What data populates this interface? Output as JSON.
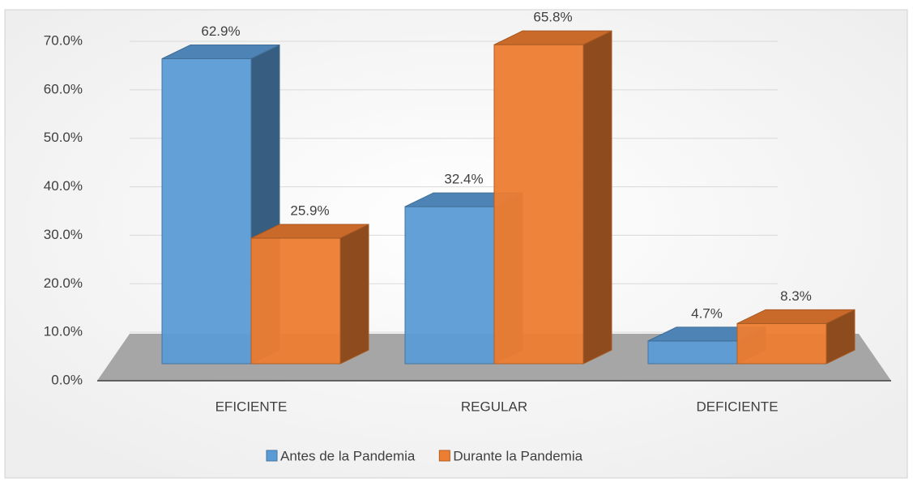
{
  "chart_data": {
    "type": "bar3d",
    "categories": [
      "EFICIENTE",
      "REGULAR",
      "DEFICIENTE"
    ],
    "series": [
      {
        "name": "Antes de la Pandemia",
        "color": "#5b9bd5",
        "values": [
          62.9,
          32.4,
          4.7
        ],
        "value_labels": [
          "62.9%",
          "32.4%",
          "4.7%"
        ]
      },
      {
        "name": "Durante la Pandemia",
        "color": "#ed7d31",
        "values": [
          25.9,
          65.8,
          8.3
        ],
        "value_labels": [
          "25.9%",
          "65.8%",
          "8.3%"
        ]
      }
    ],
    "ylim": [
      0,
      70
    ],
    "yticks": [
      {
        "value": 0,
        "label": "0.0%"
      },
      {
        "value": 10,
        "label": "10.0%"
      },
      {
        "value": 20,
        "label": "20.0%"
      },
      {
        "value": 30,
        "label": "30.0%"
      },
      {
        "value": 40,
        "label": "40.0%"
      },
      {
        "value": 50,
        "label": "50.0%"
      },
      {
        "value": 60,
        "label": "60.0%"
      },
      {
        "value": 70,
        "label": "70.0%"
      }
    ],
    "grid": true,
    "legend": "bottom"
  }
}
